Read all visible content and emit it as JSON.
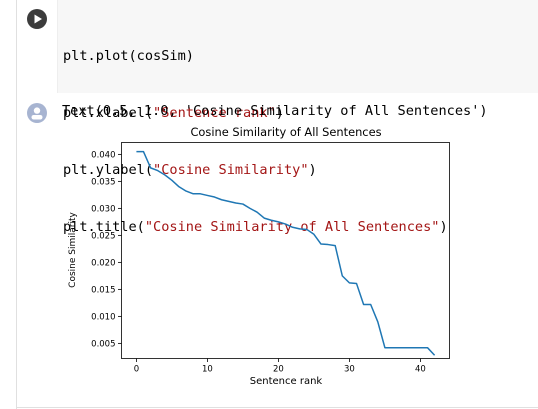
{
  "code_cell": {
    "run_icon": "play-icon",
    "lines": [
      {
        "prefix": "plt.plot(cosSim)",
        "str": "",
        "suffix": ""
      },
      {
        "prefix": "plt.xlabel(",
        "str": "\"Sentence rank\"",
        "suffix": ")"
      },
      {
        "prefix": "plt.ylabel(",
        "str": "\"Cosine Similarity\"",
        "suffix": ")"
      },
      {
        "prefix": "plt.title(",
        "str": "\"Cosine Similarity of All Sentences\"",
        "suffix": ")"
      }
    ]
  },
  "output": {
    "avatar_icon": "output-avatar-icon",
    "text": "Text(0.5, 1.0, 'Cosine Similarity of All Sentences')"
  },
  "chart_data": {
    "type": "line",
    "title": "Cosine Similarity of All Sentences",
    "xlabel": "Sentence rank",
    "ylabel": "Cosine Similarity",
    "xlim": [
      -2.1,
      44.1
    ],
    "ylim": [
      0.0022,
      0.0422
    ],
    "xticks": [
      0,
      10,
      20,
      30,
      40
    ],
    "xtick_labels": [
      "0",
      "10",
      "20",
      "30",
      "40"
    ],
    "yticks": [
      0.005,
      0.01,
      0.015,
      0.02,
      0.025,
      0.03,
      0.035,
      0.04
    ],
    "ytick_labels": [
      "0.005",
      "0.010",
      "0.015",
      "0.020",
      "0.025",
      "0.030",
      "0.035",
      "0.040"
    ],
    "grid": false,
    "line_color": "#1f77b4",
    "series": [
      {
        "x": [
          0,
          1,
          2,
          3,
          4,
          5,
          6,
          7,
          8,
          9,
          10,
          11,
          12,
          13,
          14,
          15,
          16,
          17,
          18,
          19,
          20,
          21,
          22,
          23,
          24,
          25,
          26,
          27,
          28,
          29,
          30,
          31,
          32,
          33,
          34,
          35,
          36,
          37,
          38,
          39,
          40,
          41,
          42
        ],
        "values": [
          0.0405,
          0.0405,
          0.0375,
          0.037,
          0.0362,
          0.0352,
          0.034,
          0.0332,
          0.0327,
          0.0327,
          0.0324,
          0.0321,
          0.0316,
          0.0313,
          0.031,
          0.0308,
          0.03,
          0.0293,
          0.0282,
          0.0278,
          0.0275,
          0.0271,
          0.0265,
          0.0262,
          0.0261,
          0.0252,
          0.0234,
          0.0233,
          0.0231,
          0.0175,
          0.0162,
          0.0161,
          0.0122,
          0.0122,
          0.009,
          0.0042,
          0.0042,
          0.0042,
          0.0042,
          0.0042,
          0.0042,
          0.0042,
          0.0028
        ]
      }
    ]
  }
}
